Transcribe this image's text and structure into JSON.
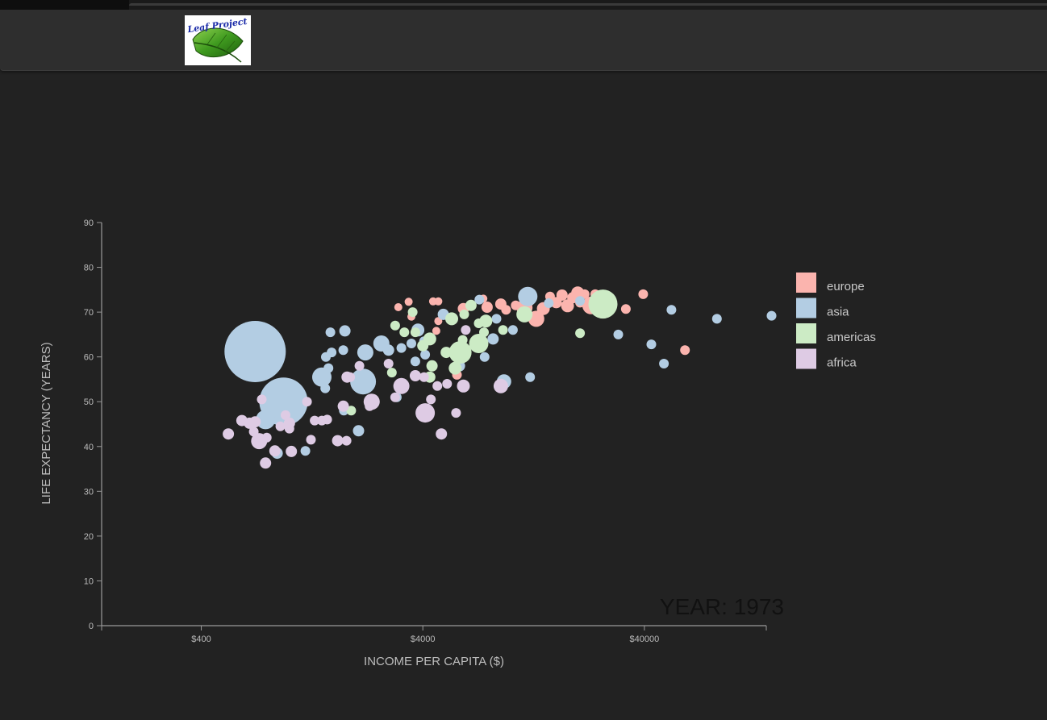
{
  "header": {
    "logo_text": "Leaf Project"
  },
  "colors": {
    "background": "#222222",
    "navbar": "#2e2e2e",
    "axis": "#9a9a9a",
    "europe": "#fbb4ae",
    "asia": "#b3cde3",
    "americas": "#ccebc5",
    "africa": "#decbe4"
  },
  "chart_data": {
    "type": "scatter",
    "xlabel": "INCOME PER CAPITA ($)",
    "ylabel": "LIFE EXPECTANCY (YEARS)",
    "xscale": "log",
    "xlim": [
      142,
      142000
    ],
    "ylim": [
      0,
      90
    ],
    "xticks": [
      {
        "v": 400,
        "label": "$400"
      },
      {
        "v": 4000,
        "label": "$4000"
      },
      {
        "v": 40000,
        "label": "$40000"
      }
    ],
    "yticks": [
      0,
      10,
      20,
      30,
      40,
      50,
      60,
      70,
      80,
      90
    ],
    "year_label": "YEAR: 1973",
    "grid": false,
    "legend_position": "right",
    "legend": [
      "europe",
      "asia",
      "americas",
      "africa"
    ],
    "series": [
      {
        "name": "europe",
        "points": [
          [
            3100,
            71.1,
            5
          ],
          [
            3450,
            72.3,
            5
          ],
          [
            3550,
            69.0,
            5
          ],
          [
            4450,
            72.4,
            5
          ],
          [
            4700,
            72.4,
            5
          ],
          [
            4600,
            65.8,
            5
          ],
          [
            4700,
            68.0,
            5
          ],
          [
            5700,
            56.0,
            6
          ],
          [
            6100,
            70.8,
            7
          ],
          [
            6600,
            71.6,
            6
          ],
          [
            7800,
            71.1,
            7
          ],
          [
            7500,
            73.0,
            5
          ],
          [
            9000,
            71.8,
            7
          ],
          [
            9500,
            70.5,
            6
          ],
          [
            10500,
            71.5,
            6
          ],
          [
            11500,
            71.0,
            10
          ],
          [
            12000,
            72.7,
            8
          ],
          [
            13000,
            68.5,
            10
          ],
          [
            14000,
            70.8,
            8
          ],
          [
            15000,
            73.5,
            6
          ],
          [
            16000,
            72.1,
            7
          ],
          [
            17000,
            73.8,
            7
          ],
          [
            18000,
            71.4,
            8
          ],
          [
            19000,
            73.2,
            7
          ],
          [
            20000,
            74.3,
            8
          ],
          [
            20500,
            72.1,
            6
          ],
          [
            21500,
            74.0,
            6
          ],
          [
            23000,
            71.5,
            11
          ],
          [
            24000,
            74.0,
            6
          ],
          [
            33000,
            70.7,
            6
          ],
          [
            39500,
            74.0,
            6
          ],
          [
            61000,
            61.5,
            6
          ]
        ]
      },
      {
        "name": "asia",
        "points": [
          [
            700,
            61.2,
            38
          ],
          [
            820,
            58.5,
            12
          ],
          [
            940,
            50.0,
            30
          ],
          [
            780,
            46.0,
            12
          ],
          [
            1000,
            45.0,
            6
          ],
          [
            880,
            38.5,
            7
          ],
          [
            1180,
            39.0,
            6
          ],
          [
            1400,
            55.5,
            12
          ],
          [
            1500,
            57.5,
            6
          ],
          [
            1450,
            53.0,
            6
          ],
          [
            1530,
            65.5,
            6
          ],
          [
            1550,
            61.0,
            6
          ],
          [
            1460,
            60.0,
            6
          ],
          [
            1750,
            61.5,
            6
          ],
          [
            1780,
            65.8,
            7
          ],
          [
            1760,
            48.0,
            6
          ],
          [
            2200,
            61.0,
            10
          ],
          [
            2150,
            54.5,
            16
          ],
          [
            2050,
            43.5,
            7
          ],
          [
            2600,
            63.0,
            10
          ],
          [
            2800,
            61.5,
            7
          ],
          [
            3200,
            62.0,
            6
          ],
          [
            3700,
            59.0,
            6
          ],
          [
            3050,
            51.0,
            6
          ],
          [
            3550,
            63.0,
            6
          ],
          [
            3800,
            66.0,
            8
          ],
          [
            4100,
            60.5,
            6
          ],
          [
            4050,
            63.5,
            6
          ],
          [
            4950,
            69.5,
            7
          ],
          [
            5850,
            58.0,
            7
          ],
          [
            7200,
            72.8,
            6
          ],
          [
            7600,
            60.0,
            6
          ],
          [
            8300,
            64.0,
            7
          ],
          [
            8600,
            68.5,
            6
          ],
          [
            9300,
            54.5,
            9
          ],
          [
            10200,
            66.0,
            6
          ],
          [
            11900,
            73.5,
            12
          ],
          [
            12200,
            55.5,
            6
          ],
          [
            14800,
            72.0,
            6
          ],
          [
            20500,
            72.5,
            6
          ],
          [
            30500,
            65.0,
            6
          ],
          [
            43000,
            62.8,
            6
          ],
          [
            49000,
            58.5,
            6
          ],
          [
            53000,
            70.5,
            6
          ],
          [
            85000,
            68.5,
            6
          ],
          [
            150000,
            69.2,
            6
          ]
        ]
      },
      {
        "name": "americas",
        "points": [
          [
            1900,
            48.0,
            6
          ],
          [
            2900,
            56.5,
            6
          ],
          [
            3000,
            67.0,
            6
          ],
          [
            3300,
            65.5,
            6
          ],
          [
            3700,
            65.5,
            6
          ],
          [
            3600,
            70.0,
            6
          ],
          [
            4000,
            62.5,
            7
          ],
          [
            4300,
            64.0,
            8
          ],
          [
            4400,
            58.0,
            7
          ],
          [
            4300,
            55.5,
            7
          ],
          [
            5100,
            61.0,
            7
          ],
          [
            5400,
            68.5,
            8
          ],
          [
            5900,
            61.0,
            14
          ],
          [
            5600,
            57.5,
            8
          ],
          [
            6050,
            63.8,
            6
          ],
          [
            6150,
            69.5,
            6
          ],
          [
            6600,
            71.5,
            7
          ],
          [
            7150,
            67.5,
            6
          ],
          [
            7150,
            63.0,
            12
          ],
          [
            7550,
            65.5,
            6
          ],
          [
            7700,
            68.0,
            8
          ],
          [
            9200,
            66.0,
            6
          ],
          [
            11500,
            69.5,
            10
          ],
          [
            20500,
            65.3,
            6
          ],
          [
            26000,
            71.8,
            18
          ]
        ]
      },
      {
        "name": "africa",
        "points": [
          [
            530,
            42.8,
            7
          ],
          [
            610,
            45.8,
            7
          ],
          [
            660,
            45.2,
            7
          ],
          [
            700,
            45.5,
            7
          ],
          [
            690,
            43.3,
            6
          ],
          [
            730,
            41.2,
            10
          ],
          [
            790,
            42.0,
            6
          ],
          [
            780,
            36.3,
            7
          ],
          [
            750,
            50.5,
            6
          ],
          [
            860,
            39.0,
            7
          ],
          [
            910,
            44.5,
            6
          ],
          [
            960,
            47.0,
            6
          ],
          [
            1000,
            45.2,
            7
          ],
          [
            1000,
            44.0,
            6
          ],
          [
            1020,
            38.9,
            7
          ],
          [
            1200,
            50.0,
            6
          ],
          [
            1250,
            41.5,
            6
          ],
          [
            1300,
            45.8,
            6
          ],
          [
            1400,
            45.8,
            6
          ],
          [
            1480,
            46.0,
            6
          ],
          [
            1750,
            49.0,
            7
          ],
          [
            1650,
            41.3,
            7
          ],
          [
            1810,
            41.3,
            6
          ],
          [
            1820,
            55.5,
            7
          ],
          [
            1880,
            55.5,
            6
          ],
          [
            2070,
            58.0,
            6
          ],
          [
            2350,
            50.0,
            10
          ],
          [
            2300,
            49.0,
            6
          ],
          [
            2800,
            58.5,
            6
          ],
          [
            3000,
            51.0,
            6
          ],
          [
            3200,
            53.5,
            10
          ],
          [
            3700,
            55.8,
            7
          ],
          [
            4050,
            55.5,
            6
          ],
          [
            4100,
            47.5,
            12
          ],
          [
            4350,
            50.5,
            6
          ],
          [
            4650,
            53.5,
            6
          ],
          [
            4850,
            42.8,
            7
          ],
          [
            5150,
            54.0,
            6
          ],
          [
            5650,
            47.5,
            6
          ],
          [
            6100,
            53.5,
            8
          ],
          [
            6250,
            66.0,
            6
          ],
          [
            9000,
            53.5,
            9
          ]
        ]
      }
    ]
  }
}
